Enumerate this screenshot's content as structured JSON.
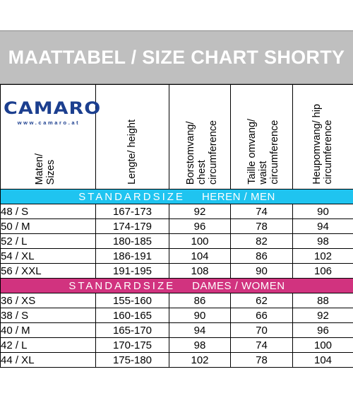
{
  "title": "MAATTABEL / SIZE CHART SHORTY",
  "logo": {
    "brand": "CAMARO",
    "url": "www.camaro.at"
  },
  "columns": [
    "Maten/\nSizes",
    "Lengte/ height",
    "Borstomvang/\nchest\ncircumference",
    "Taille omvang/\nwaist\ncircumference",
    "Heupomvang/ hip\ncircumference"
  ],
  "sections": [
    {
      "label": "STANDARDSIZE",
      "sublabel": "HEREN / MEN",
      "color": "#1fc4f0",
      "rows": [
        [
          "48 / S",
          "167-173",
          "92",
          "74",
          "90"
        ],
        [
          "50 / M",
          "174-179",
          "96",
          "78",
          "94"
        ],
        [
          "52 / L",
          "180-185",
          "100",
          "82",
          "98"
        ],
        [
          "54 / XL",
          "186-191",
          "104",
          "86",
          "102"
        ],
        [
          "56 / XXL",
          "191-195",
          "108",
          "90",
          "106"
        ]
      ]
    },
    {
      "label": "STANDARDSIZE",
      "sublabel": "DAMES / WOMEN",
      "color": "#d1337f",
      "rows": [
        [
          "36 / XS",
          "155-160",
          "86",
          "62",
          "88"
        ],
        [
          "38 / S",
          "160-165",
          "90",
          "66",
          "92"
        ],
        [
          "40 / M",
          "165-170",
          "94",
          "70",
          "96"
        ],
        [
          "42 / L",
          "170-175",
          "98",
          "74",
          "100"
        ],
        [
          "44 / XL",
          "175-180",
          "102",
          "78",
          "104"
        ]
      ]
    }
  ]
}
